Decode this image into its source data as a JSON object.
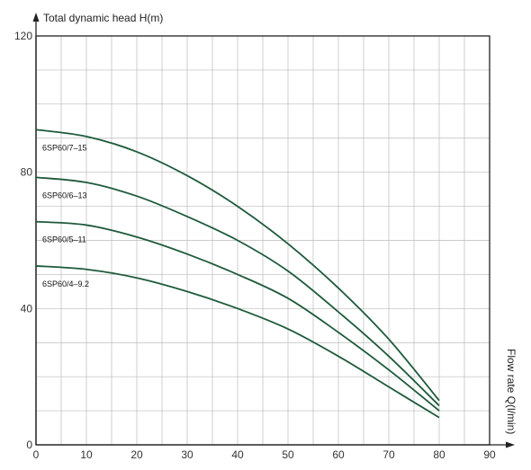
{
  "chart_data": {
    "type": "line",
    "title": "",
    "ylabel": "Total dynamic head H(m)",
    "xlabel": "Flow rate Q(l/min)",
    "xlim": [
      0,
      90
    ],
    "ylim": [
      0,
      120
    ],
    "x_ticks": [
      0,
      10,
      20,
      30,
      40,
      50,
      60,
      70,
      80,
      90
    ],
    "y_ticks": [
      0,
      40,
      80,
      120
    ],
    "grid": true,
    "legend": "inline labels",
    "colors": {
      "series": "#1e5a3a",
      "grid": "#bbbbbb",
      "axis": "#222222"
    },
    "x": [
      0,
      10,
      20,
      30,
      40,
      50,
      60,
      70,
      80
    ],
    "series": [
      {
        "name": "6SP60/7–15",
        "values": [
          92.5,
          90.5,
          86,
          79,
          70,
          59,
          46,
          31,
          13
        ]
      },
      {
        "name": "6SP60/6–13",
        "values": [
          78.5,
          77,
          73,
          67,
          60,
          51,
          39,
          26,
          11.5
        ]
      },
      {
        "name": "6SP60/5–11",
        "values": [
          65.5,
          64.5,
          61,
          56,
          50,
          43,
          33,
          22,
          10
        ]
      },
      {
        "name": "6SP60/4–9.2",
        "values": [
          52.5,
          51.5,
          49,
          45,
          40,
          34,
          26,
          17,
          8
        ]
      }
    ]
  }
}
